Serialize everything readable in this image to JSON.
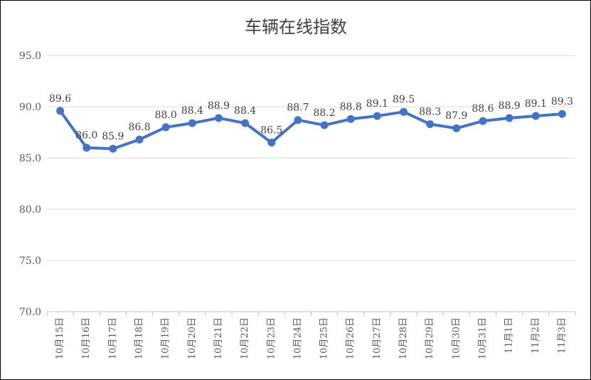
{
  "chart_data": {
    "type": "line",
    "title": "车辆在线指数",
    "xlabel": "",
    "ylabel": "",
    "ylim": [
      70.0,
      95.0
    ],
    "ytick_labels": [
      "70.0",
      "75.0",
      "80.0",
      "85.0",
      "90.0",
      "95.0"
    ],
    "grid": true,
    "legend": "none",
    "categories": [
      "10月15日",
      "10月16日",
      "10月17日",
      "10月18日",
      "10月19日",
      "10月20日",
      "10月21日",
      "10月22日",
      "10月23日",
      "10月24日",
      "10月25日",
      "10月26日",
      "10月27日",
      "10月28日",
      "10月29日",
      "10月30日",
      "10月31日",
      "11月1日",
      "11月2日",
      "11月3日"
    ],
    "series": [
      {
        "values": [
          89.6,
          86.0,
          85.9,
          86.8,
          88.0,
          88.4,
          88.9,
          88.4,
          86.5,
          88.7,
          88.2,
          88.8,
          89.1,
          89.5,
          88.3,
          87.9,
          88.6,
          88.9,
          89.1,
          89.3
        ],
        "labels": [
          "89.6",
          "86.0",
          "85.9",
          "86.8",
          "88.0",
          "88.4",
          "88.9",
          "88.4",
          "86.5",
          "88.7",
          "88.2",
          "88.8",
          "89.1",
          "89.5",
          "88.3",
          "87.9",
          "88.6",
          "88.9",
          "89.1",
          "89.3"
        ],
        "color": "#4472C4"
      }
    ],
    "colors": {
      "line": "#4472C4",
      "grid": "#D9D9D9",
      "axis": "#BFBFBF",
      "text": "#595959"
    }
  }
}
